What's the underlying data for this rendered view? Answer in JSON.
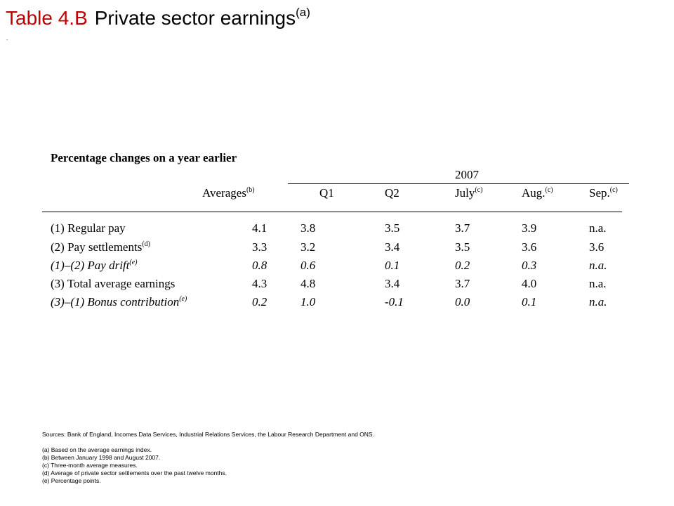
{
  "title": {
    "prefix": "Table 4.B",
    "text": "Private sector earnings",
    "note": "(a)"
  },
  "table": {
    "subtitle": "Percentage changes on a year earlier",
    "year": "2007",
    "columns": [
      {
        "label": "Averages",
        "note": "(b)"
      },
      {
        "label": "Q1",
        "note": ""
      },
      {
        "label": "Q2",
        "note": ""
      },
      {
        "label": "July",
        "note": "(c)"
      },
      {
        "label": "Aug.",
        "note": "(c)"
      },
      {
        "label": "Sep.",
        "note": "(c)"
      }
    ],
    "rows": [
      {
        "label": "(1) Regular pay",
        "note": "",
        "italic": false,
        "values": [
          "4.1",
          "3.8",
          "3.5",
          "3.7",
          "3.9",
          "n.a."
        ]
      },
      {
        "label": "(2) Pay settlements",
        "note": "(d)",
        "italic": false,
        "values": [
          "3.3",
          "3.2",
          "3.4",
          "3.5",
          "3.6",
          "3.6"
        ]
      },
      {
        "label": "(1)–(2) Pay drift",
        "note": "(e)",
        "italic": true,
        "values": [
          "0.8",
          "0.6",
          "0.1",
          "0.2",
          "0.3",
          "n.a."
        ]
      },
      {
        "label": "(3) Total average earnings",
        "note": "",
        "italic": false,
        "values": [
          "4.3",
          "4.8",
          "3.4",
          "3.7",
          "4.0",
          "n.a."
        ]
      },
      {
        "label": "(3)–(1) Bonus contribution",
        "note": "(e)",
        "italic": true,
        "values": [
          "0.2",
          "1.0",
          "-0.1",
          "0.0",
          "0.1",
          "n.a."
        ]
      }
    ]
  },
  "sources": "Sources: Bank of England, Incomes Data Services, Industrial Relations Services, the Labour Research Department and ONS.",
  "footnotes": [
    "(a) Based on the average earnings index.",
    "(b) Between January 1998 and August 2007.",
    "(c) Three-month average measures.",
    "(d) Average of private sector settlements over the past twelve months.",
    "(e) Percentage points."
  ]
}
